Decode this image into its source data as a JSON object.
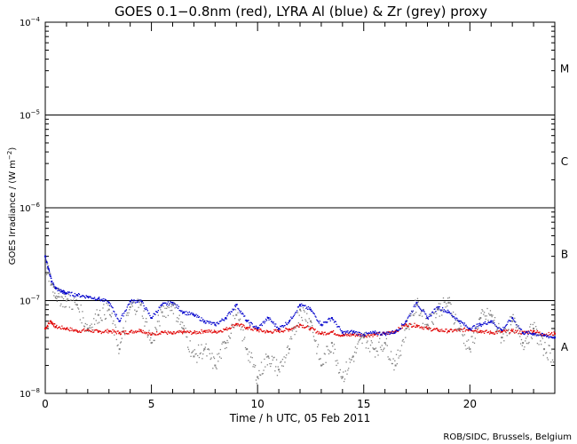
{
  "chart_data": {
    "type": "scatter",
    "title": "GOES 0.1−0.8nm (red), LYRA Al (blue) & Zr (grey) proxy",
    "xlabel": "Time / h UTC, 05 Feb 2011",
    "ylabel": "GOES Irradiance / (W m⁻²)",
    "ylabel_parts": {
      "main": "GOES Irradiance / (W m",
      "exponent": "−2",
      "close": ")"
    },
    "credit": "ROB/SIDC, Brussels, Belgium",
    "xlim": [
      0,
      24
    ],
    "ylim": [
      1e-08,
      0.0001
    ],
    "yscale": "log",
    "grid": false,
    "xticks": [
      {
        "value": 0,
        "label": "0"
      },
      {
        "value": 5,
        "label": "5"
      },
      {
        "value": 10,
        "label": "10"
      },
      {
        "value": 15,
        "label": "15"
      },
      {
        "value": 20,
        "label": "20"
      }
    ],
    "yticks": [
      {
        "value": 1e-08,
        "base": "10",
        "exp": "−8"
      },
      {
        "value": 1e-07,
        "base": "10",
        "exp": "−7"
      },
      {
        "value": 1e-06,
        "base": "10",
        "exp": "−6"
      },
      {
        "value": 1e-05,
        "base": "10",
        "exp": "−5"
      },
      {
        "value": 0.0001,
        "base": "10",
        "exp": "−4"
      }
    ],
    "threshold_lines": [
      1e-07,
      1e-06,
      1e-05
    ],
    "flare_classes": [
      {
        "label": "A",
        "value": 3.16e-08
      },
      {
        "label": "B",
        "value": 3.16e-07
      },
      {
        "label": "C",
        "value": 3.16e-06
      },
      {
        "label": "M",
        "value": 3.16e-05
      }
    ],
    "colors": {
      "goes": "#e00000",
      "lyra_al": "#0000cc",
      "lyra_zr": "#808080",
      "axes": "#000000"
    },
    "series": [
      {
        "key": "goes",
        "color": "#e00000",
        "x": [
          0.0,
          0.25,
          0.5,
          1.0,
          1.5,
          2.0,
          2.5,
          3.0,
          3.5,
          4.0,
          4.5,
          5.0,
          5.5,
          6.0,
          6.5,
          7.0,
          7.5,
          8.0,
          8.5,
          9.0,
          9.5,
          10.0,
          10.5,
          11.0,
          11.5,
          12.0,
          12.5,
          13.0,
          13.5,
          14.0,
          14.5,
          15.0,
          15.5,
          16.0,
          16.5,
          17.0,
          17.5,
          18.0,
          18.5,
          19.0,
          19.5,
          20.0,
          20.5,
          21.0,
          21.5,
          22.0,
          22.5,
          23.0,
          23.5,
          24.0
        ],
        "y": [
          5e-08,
          6e-08,
          5.2e-08,
          5e-08,
          4.7e-08,
          4.8e-08,
          4.6e-08,
          4.7e-08,
          4.5e-08,
          4.6e-08,
          4.8e-08,
          4.3e-08,
          4.6e-08,
          4.4e-08,
          4.6e-08,
          4.5e-08,
          4.7e-08,
          4.6e-08,
          4.9e-08,
          5.6e-08,
          5.1e-08,
          4.8e-08,
          4.6e-08,
          4.7e-08,
          4.9e-08,
          5.5e-08,
          5e-08,
          4.4e-08,
          4.6e-08,
          4.2e-08,
          4.3e-08,
          4.2e-08,
          4.3e-08,
          4.4e-08,
          4.7e-08,
          5.5e-08,
          5.4e-08,
          5e-08,
          4.8e-08,
          4.7e-08,
          4.8e-08,
          4.9e-08,
          4.7e-08,
          4.5e-08,
          4.6e-08,
          4.7e-08,
          4.5e-08,
          4.7e-08,
          4.3e-08,
          4.4e-08
        ]
      },
      {
        "key": "lyra_al",
        "color": "#0000cc",
        "x": [
          0.0,
          0.15,
          0.3,
          0.5,
          0.8,
          1.0,
          1.5,
          2.0,
          2.5,
          3.0,
          3.5,
          4.0,
          4.5,
          5.0,
          5.5,
          6.0,
          6.5,
          7.0,
          7.5,
          8.0,
          8.5,
          9.0,
          9.5,
          10.0,
          10.5,
          11.0,
          11.5,
          12.0,
          12.5,
          13.0,
          13.5,
          14.0,
          14.5,
          15.0,
          15.5,
          16.0,
          16.5,
          17.0,
          17.5,
          18.0,
          18.5,
          19.0,
          19.5,
          20.0,
          20.5,
          21.0,
          21.5,
          22.0,
          22.5,
          23.0,
          23.5,
          24.0
        ],
        "y": [
          3e-07,
          2.2e-07,
          1.6e-07,
          1.35e-07,
          1.25e-07,
          1.2e-07,
          1.15e-07,
          1.1e-07,
          1.05e-07,
          9.5e-08,
          6e-08,
          9.8e-08,
          1e-07,
          6.5e-08,
          9e-08,
          9.5e-08,
          7.5e-08,
          7e-08,
          6e-08,
          5.5e-08,
          6.5e-08,
          9e-08,
          6e-08,
          5e-08,
          6.5e-08,
          5e-08,
          6e-08,
          9e-08,
          8e-08,
          5.5e-08,
          6.5e-08,
          4.5e-08,
          4.6e-08,
          4.3e-08,
          4.5e-08,
          4.4e-08,
          4.6e-08,
          6e-08,
          9.5e-08,
          6.5e-08,
          8.5e-08,
          7.5e-08,
          6e-08,
          5e-08,
          5.5e-08,
          6e-08,
          4.8e-08,
          6.5e-08,
          4.5e-08,
          4.4e-08,
          4.2e-08,
          4e-08
        ]
      },
      {
        "key": "lyra_zr",
        "color": "#808080",
        "x": [
          0.0,
          0.3,
          0.6,
          1.0,
          1.5,
          2.0,
          2.5,
          3.0,
          3.5,
          4.0,
          4.5,
          5.0,
          5.5,
          6.0,
          6.5,
          7.0,
          7.5,
          8.0,
          8.5,
          9.0,
          9.5,
          10.0,
          10.5,
          11.0,
          11.5,
          12.0,
          12.5,
          13.0,
          13.5,
          14.0,
          14.5,
          15.0,
          15.5,
          16.0,
          16.5,
          17.0,
          17.5,
          18.0,
          18.5,
          19.0,
          19.5,
          20.0,
          20.5,
          21.0,
          21.5,
          22.0,
          22.5,
          23.0,
          23.5,
          24.0
        ],
        "y": [
          2.5e-07,
          1.5e-07,
          1.1e-07,
          1e-07,
          9e-08,
          5e-08,
          7e-08,
          8e-08,
          3e-08,
          8.5e-08,
          9e-08,
          3.5e-08,
          7.5e-08,
          9e-08,
          5e-08,
          2.5e-08,
          3e-08,
          2e-08,
          3.5e-08,
          7e-08,
          3e-08,
          1.5e-08,
          2.5e-08,
          1.8e-08,
          3e-08,
          8e-08,
          6e-08,
          2e-08,
          3.5e-08,
          1.5e-08,
          2.5e-08,
          4e-08,
          3e-08,
          3.5e-08,
          2e-08,
          5e-08,
          9e-08,
          5.5e-08,
          8e-08,
          9.5e-08,
          5e-08,
          3e-08,
          6.5e-08,
          7e-08,
          4e-08,
          6e-08,
          3.5e-08,
          5e-08,
          3e-08,
          2.5e-08
        ]
      }
    ]
  }
}
